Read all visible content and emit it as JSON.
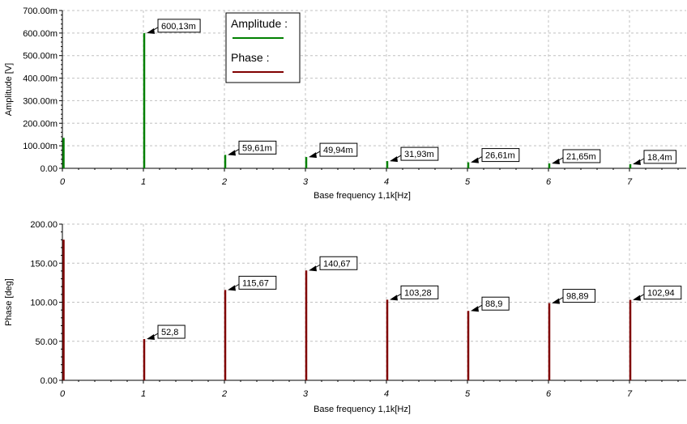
{
  "chart_data": [
    {
      "type": "bar",
      "variant": "stem",
      "xlabel": "Base frequency 1,1k[Hz]",
      "ylabel": "Amplitude [V]",
      "xlim": [
        0,
        7.7
      ],
      "ylim": [
        0,
        0.7
      ],
      "x_ticks": [
        0,
        1,
        2,
        3,
        4,
        5,
        6,
        7
      ],
      "x_tick_labels": [
        "0",
        "1",
        "2",
        "3",
        "4",
        "5",
        "6",
        "7"
      ],
      "y_ticks": [
        0,
        0.1,
        0.2,
        0.3,
        0.4,
        0.5,
        0.6,
        0.7
      ],
      "y_tick_labels": [
        "0.00",
        "100.00m",
        "200.00m",
        "300.00m",
        "400.00m",
        "500.00m",
        "600.00m",
        "700.00m"
      ],
      "grid": true,
      "series": [
        {
          "name": "Amplitude :",
          "color": "#008000",
          "x": [
            0,
            1,
            2,
            3,
            4,
            5,
            6,
            7
          ],
          "values": [
            0.135,
            0.60013,
            0.05961,
            0.04994,
            0.03193,
            0.02661,
            0.02165,
            0.0184
          ]
        }
      ],
      "annotations": [
        {
          "x": 1,
          "y": 0.60013,
          "text": "600,13m"
        },
        {
          "x": 2,
          "y": 0.05961,
          "text": "59,61m"
        },
        {
          "x": 3,
          "y": 0.04994,
          "text": "49,94m"
        },
        {
          "x": 4,
          "y": 0.03193,
          "text": "31,93m"
        },
        {
          "x": 5,
          "y": 0.02661,
          "text": "26,61m"
        },
        {
          "x": 6,
          "y": 0.02165,
          "text": "21,65m"
        },
        {
          "x": 7,
          "y": 0.0184,
          "text": "18,4m"
        }
      ],
      "legend": {
        "placement": "top-center",
        "entries": [
          {
            "label": "Amplitude :",
            "color": "#008000"
          },
          {
            "label": "Phase :",
            "color": "#800000"
          }
        ]
      }
    },
    {
      "type": "bar",
      "variant": "stem",
      "xlabel": "Base frequency 1,1k[Hz]",
      "ylabel": "Phase [deg]",
      "xlim": [
        0,
        7.7
      ],
      "ylim": [
        0,
        200
      ],
      "x_ticks": [
        0,
        1,
        2,
        3,
        4,
        5,
        6,
        7
      ],
      "x_tick_labels": [
        "0",
        "1",
        "2",
        "3",
        "4",
        "5",
        "6",
        "7"
      ],
      "y_ticks": [
        0,
        50,
        100,
        150,
        200
      ],
      "y_tick_labels": [
        "0.00",
        "50.00",
        "100.00",
        "150.00",
        "200.00"
      ],
      "grid": true,
      "series": [
        {
          "name": "Phase :",
          "color": "#800000",
          "x": [
            0,
            1,
            2,
            3,
            4,
            5,
            6,
            7
          ],
          "values": [
            180,
            52.8,
            115.67,
            140.67,
            103.28,
            88.9,
            98.89,
            102.94
          ]
        }
      ],
      "annotations": [
        {
          "x": 1,
          "y": 52.8,
          "text": "52,8"
        },
        {
          "x": 2,
          "y": 115.67,
          "text": "115,67"
        },
        {
          "x": 3,
          "y": 140.67,
          "text": "140,67"
        },
        {
          "x": 4,
          "y": 103.28,
          "text": "103,28"
        },
        {
          "x": 5,
          "y": 88.9,
          "text": "88,9"
        },
        {
          "x": 6,
          "y": 98.89,
          "text": "98,89"
        },
        {
          "x": 7,
          "y": 102.94,
          "text": "102,94"
        }
      ]
    }
  ]
}
